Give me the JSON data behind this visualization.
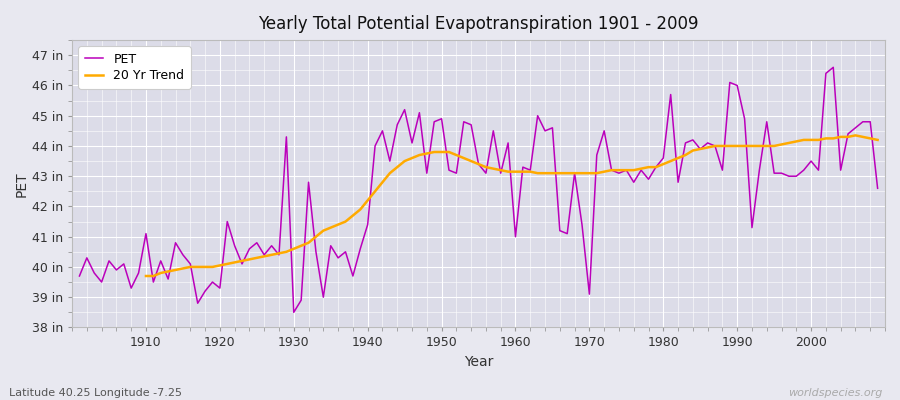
{
  "title": "Yearly Total Potential Evapotranspiration 1901 - 2009",
  "xlabel": "Year",
  "ylabel": "PET",
  "lat_lon_label": "Latitude 40.25 Longitude -7.25",
  "watermark": "worldspecies.org",
  "pet_color": "#bb00bb",
  "trend_color": "#ffaa00",
  "fig_bg_color": "#e8e8f0",
  "plot_bg_color": "#dcdce8",
  "ylim": [
    38.0,
    47.5
  ],
  "xlim": [
    1900,
    2010
  ],
  "yticks": [
    38,
    39,
    40,
    41,
    42,
    43,
    44,
    45,
    46,
    47
  ],
  "ytick_labels": [
    "38 in",
    "39 in",
    "40 in",
    "41 in",
    "42 in",
    "43 in",
    "44 in",
    "45 in",
    "46 in",
    "47 in"
  ],
  "xticks": [
    1910,
    1920,
    1930,
    1940,
    1950,
    1960,
    1970,
    1980,
    1990,
    2000
  ],
  "years": [
    1901,
    1902,
    1903,
    1904,
    1905,
    1906,
    1907,
    1908,
    1909,
    1910,
    1911,
    1912,
    1913,
    1914,
    1915,
    1916,
    1917,
    1918,
    1919,
    1920,
    1921,
    1922,
    1923,
    1924,
    1925,
    1926,
    1927,
    1928,
    1929,
    1930,
    1931,
    1932,
    1933,
    1934,
    1935,
    1936,
    1937,
    1938,
    1939,
    1940,
    1941,
    1942,
    1943,
    1944,
    1945,
    1946,
    1947,
    1948,
    1949,
    1950,
    1951,
    1952,
    1953,
    1954,
    1955,
    1956,
    1957,
    1958,
    1959,
    1960,
    1961,
    1962,
    1963,
    1964,
    1965,
    1966,
    1967,
    1968,
    1969,
    1970,
    1971,
    1972,
    1973,
    1974,
    1975,
    1976,
    1977,
    1978,
    1979,
    1980,
    1981,
    1982,
    1983,
    1984,
    1985,
    1986,
    1987,
    1988,
    1989,
    1990,
    1991,
    1992,
    1993,
    1994,
    1995,
    1996,
    1997,
    1998,
    1999,
    2000,
    2001,
    2002,
    2003,
    2004,
    2005,
    2006,
    2007,
    2008,
    2009
  ],
  "pet_values": [
    39.7,
    40.3,
    39.8,
    39.5,
    40.2,
    39.9,
    40.1,
    39.3,
    39.8,
    41.1,
    39.5,
    40.2,
    39.6,
    40.8,
    40.4,
    40.1,
    38.8,
    39.2,
    39.5,
    39.3,
    41.5,
    40.7,
    40.1,
    40.6,
    40.8,
    40.4,
    40.7,
    40.4,
    44.3,
    38.5,
    38.9,
    42.8,
    40.5,
    39.0,
    40.7,
    40.3,
    40.5,
    39.7,
    40.6,
    41.4,
    44.0,
    44.5,
    43.5,
    44.7,
    45.2,
    44.1,
    45.1,
    43.1,
    44.8,
    44.9,
    43.2,
    43.1,
    44.8,
    44.7,
    43.4,
    43.1,
    44.5,
    43.1,
    44.1,
    41.0,
    43.3,
    43.2,
    45.0,
    44.5,
    44.6,
    41.2,
    41.1,
    43.1,
    41.4,
    39.1,
    43.7,
    44.5,
    43.2,
    43.1,
    43.2,
    42.8,
    43.2,
    42.9,
    43.3,
    43.6,
    45.7,
    42.8,
    44.1,
    44.2,
    43.9,
    44.1,
    44.0,
    43.2,
    46.1,
    46.0,
    44.9,
    41.3,
    43.2,
    44.8,
    43.1,
    43.1,
    43.0,
    43.0,
    43.2,
    43.5,
    43.2,
    46.4,
    46.6,
    43.2,
    44.4,
    44.6,
    44.8,
    44.8,
    42.6
  ],
  "trend_years": [
    1910,
    1911,
    1912,
    1913,
    1914,
    1915,
    1916,
    1917,
    1918,
    1919,
    1920,
    1921,
    1922,
    1923,
    1924,
    1925,
    1926,
    1927,
    1928,
    1929,
    1930,
    1931,
    1932,
    1933,
    1934,
    1935,
    1936,
    1937,
    1938,
    1939,
    1940,
    1941,
    1942,
    1943,
    1944,
    1945,
    1946,
    1947,
    1948,
    1949,
    1950,
    1951,
    1952,
    1953,
    1954,
    1955,
    1956,
    1957,
    1958,
    1959,
    1960,
    1961,
    1962,
    1963,
    1964,
    1965,
    1966,
    1967,
    1968,
    1969,
    1970,
    1971,
    1972,
    1973,
    1974,
    1975,
    1976,
    1977,
    1978,
    1979,
    1980,
    1981,
    1982,
    1983,
    1984,
    1985,
    1986,
    1987,
    1988,
    1989,
    1990,
    1991,
    1992,
    1993,
    1994,
    1995,
    1996,
    1997,
    1998,
    1999,
    2000,
    2001,
    2002,
    2003,
    2004,
    2005,
    2006,
    2007,
    2008,
    2009
  ],
  "trend_values": [
    39.7,
    39.7,
    39.8,
    39.85,
    39.9,
    39.95,
    40.0,
    40.0,
    40.0,
    40.0,
    40.05,
    40.1,
    40.15,
    40.2,
    40.25,
    40.3,
    40.35,
    40.4,
    40.45,
    40.5,
    40.6,
    40.7,
    40.8,
    41.0,
    41.2,
    41.3,
    41.4,
    41.5,
    41.7,
    41.9,
    42.2,
    42.5,
    42.8,
    43.1,
    43.3,
    43.5,
    43.6,
    43.7,
    43.75,
    43.8,
    43.8,
    43.8,
    43.7,
    43.6,
    43.5,
    43.4,
    43.3,
    43.25,
    43.2,
    43.15,
    43.15,
    43.15,
    43.15,
    43.1,
    43.1,
    43.1,
    43.1,
    43.1,
    43.1,
    43.1,
    43.1,
    43.1,
    43.15,
    43.2,
    43.2,
    43.2,
    43.2,
    43.25,
    43.3,
    43.3,
    43.4,
    43.5,
    43.6,
    43.7,
    43.85,
    43.9,
    43.95,
    44.0,
    44.0,
    44.0,
    44.0,
    44.0,
    44.0,
    44.0,
    44.0,
    44.0,
    44.05,
    44.1,
    44.15,
    44.2,
    44.2,
    44.2,
    44.25,
    44.25,
    44.3,
    44.3,
    44.35,
    44.3,
    44.25,
    44.2
  ]
}
